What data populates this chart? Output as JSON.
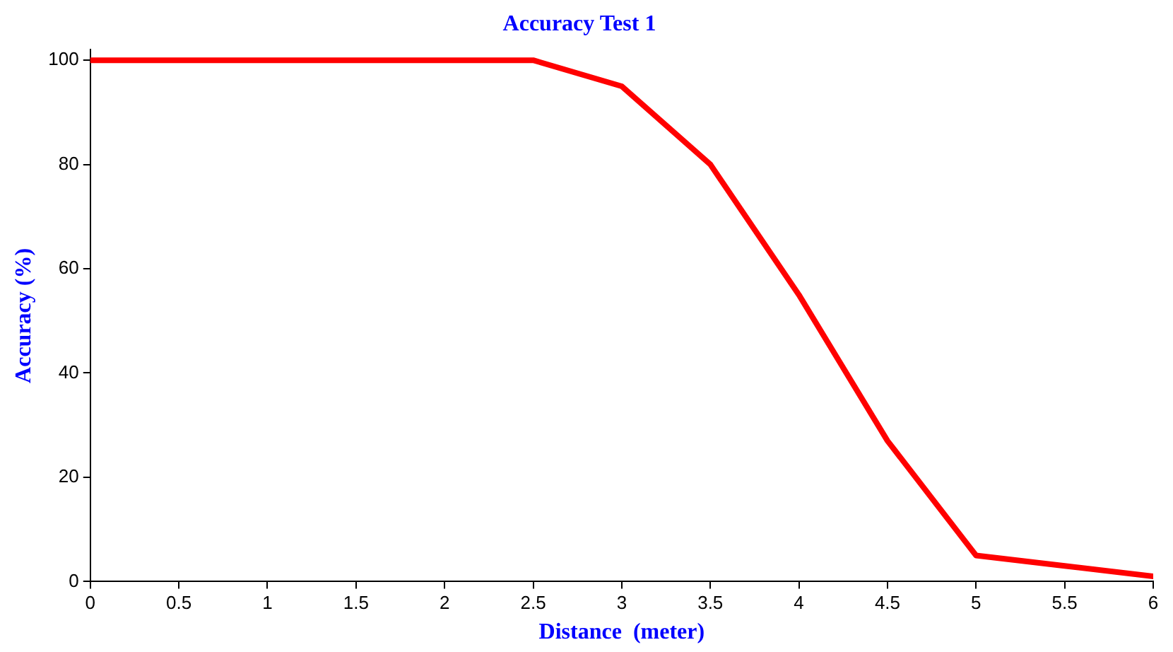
{
  "chart_data": {
    "type": "line",
    "title": "Accuracy Test 1",
    "xlabel": "Distance  (meter)",
    "ylabel": "Accuracy (%)",
    "x": [
      0,
      0.5,
      1,
      1.5,
      2,
      2.5,
      3,
      3.5,
      4,
      4.5,
      5,
      5.5,
      6
    ],
    "series": [
      {
        "color": "#ff0000",
        "values": [
          100,
          100,
          100,
          100,
          100,
          100,
          95,
          80,
          55,
          27,
          5,
          3,
          1
        ]
      }
    ],
    "xlim": [
      0,
      6
    ],
    "xticks": [
      0,
      0.5,
      1,
      1.5,
      2,
      2.5,
      3,
      3.5,
      4,
      4.5,
      5,
      5.5,
      6
    ],
    "ylim": [
      0,
      102
    ],
    "yticks": [
      0,
      20,
      40,
      60,
      80,
      100
    ],
    "grid": false,
    "legend": false,
    "marker": "none",
    "line_style": "solid"
  }
}
